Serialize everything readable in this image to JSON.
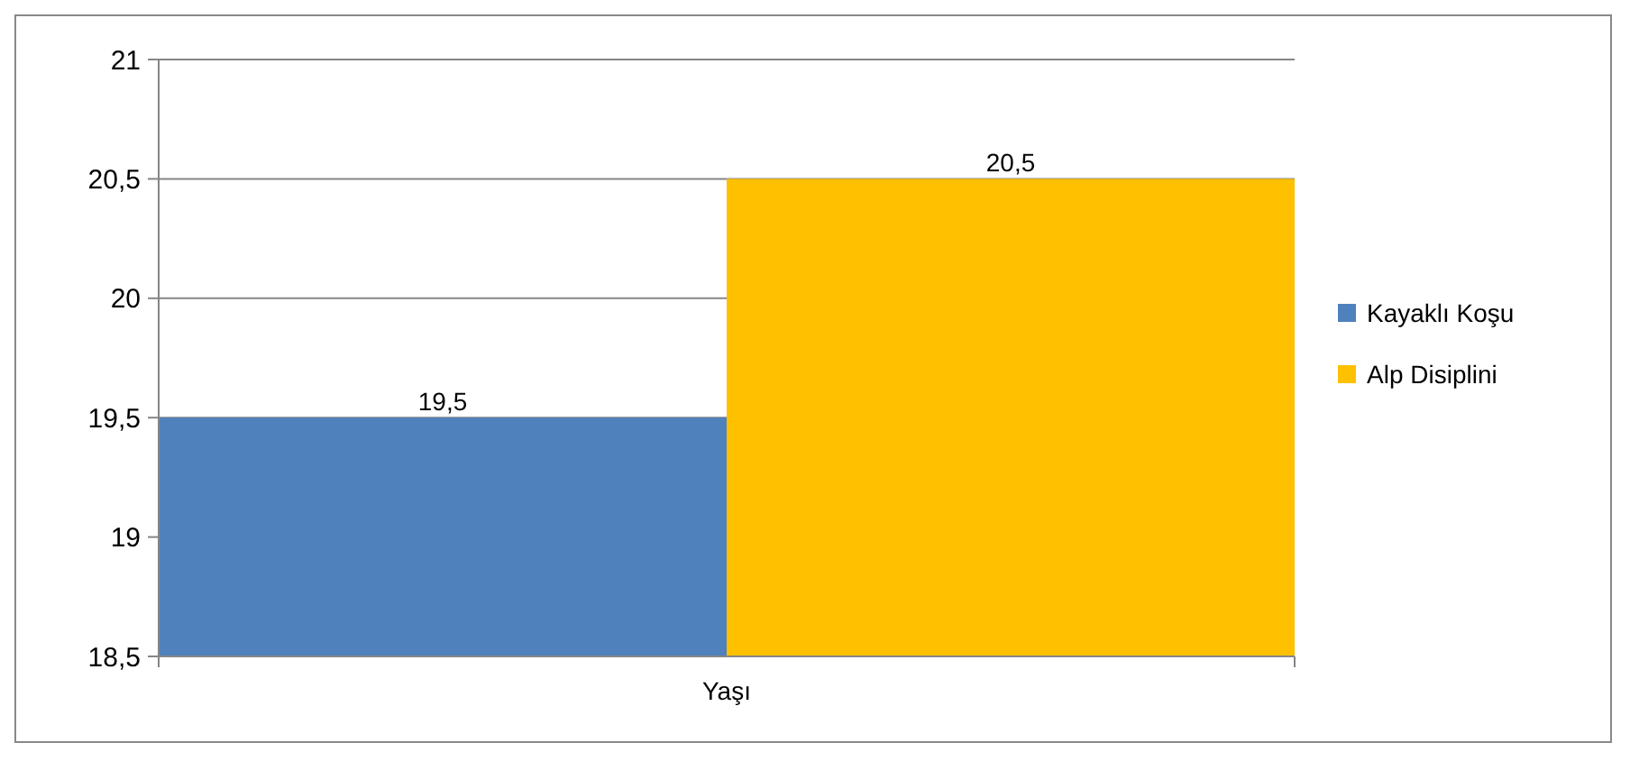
{
  "chart_data": {
    "type": "bar",
    "categories": [
      "Yaşı"
    ],
    "series": [
      {
        "name": "Kayaklı Koşu",
        "color": "#4f81bd",
        "values": [
          19.5
        ],
        "value_labels": [
          "19,5"
        ]
      },
      {
        "name": "Alp Disiplini",
        "color": "#ffc000",
        "values": [
          20.5
        ],
        "value_labels": [
          "20,5"
        ]
      }
    ],
    "ylim": [
      18.5,
      21
    ],
    "yticks": [
      {
        "value": 18.5,
        "label": "18,5"
      },
      19,
      {
        "value": 19.5,
        "label": "19,5"
      },
      20,
      {
        "value": 20.5,
        "label": "20,5"
      },
      21
    ],
    "grid": "y",
    "legend": "right"
  }
}
